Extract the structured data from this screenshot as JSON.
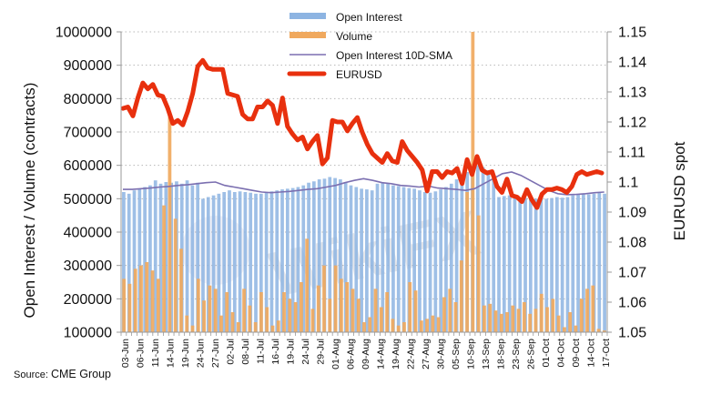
{
  "chart_data": {
    "type": "bar",
    "title": "",
    "left_axis": {
      "label": "Open Interest / Volume (contracts)",
      "range": [
        100000,
        1000000
      ],
      "ticks": [
        "100000",
        "200000",
        "300000",
        "400000",
        "500000",
        "600000",
        "700000",
        "800000",
        "900000",
        "1000000"
      ]
    },
    "right_axis": {
      "label": "EURUSD spot",
      "range": [
        1.05,
        1.15
      ],
      "ticks": [
        "1.05",
        "1.06",
        "1.07",
        "1.08",
        "1.09",
        "1.1",
        "1.11",
        "1.12",
        "1.13",
        "1.14",
        "1.15"
      ]
    },
    "x_tick_labels": [
      "03-Jun",
      "06-Jun",
      "11-Jun",
      "14-Jun",
      "19-Jun",
      "24-Jun",
      "27-Jun",
      "02-Jul",
      "08-Jul",
      "11-Jul",
      "16-Jul",
      "19-Jul",
      "24-Jul",
      "29-Jul",
      "01-Aug",
      "06-Aug",
      "09-Aug",
      "14-Aug",
      "19-Aug",
      "22-Aug",
      "27-Aug",
      "30-Aug",
      "05-Sep",
      "10-Sep",
      "13-Sep",
      "18-Sep",
      "23-Sep",
      "26-Sep",
      "01-Oct",
      "04-Oct",
      "09-Oct",
      "14-Oct",
      "17-Oct"
    ],
    "grid": "horizontal-dotted",
    "legend_position": "top-center",
    "series": [
      {
        "name": "Open Interest",
        "type": "bar",
        "axis": "left",
        "color": "#8db4e2",
        "values": [
          520000,
          515000,
          525000,
          530000,
          535000,
          540000,
          555000,
          545000,
          550000,
          548000,
          552000,
          545000,
          555000,
          540000,
          548000,
          500000,
          505000,
          510000,
          515000,
          520000,
          525000,
          520000,
          522000,
          520000,
          518000,
          515000,
          515000,
          520000,
          522000,
          525000,
          528000,
          530000,
          532000,
          535000,
          540000,
          548000,
          552000,
          558000,
          560000,
          565000,
          562000,
          558000,
          550000,
          540000,
          535000,
          530000,
          528000,
          525000,
          545000,
          548000,
          545000,
          540000,
          538000,
          535000,
          532000,
          530000,
          525000,
          520000,
          518000,
          522000,
          528000,
          535000,
          545000,
          558000,
          570000,
          580000,
          590000,
          600000,
          595000,
          585000,
          560000,
          505000,
          508000,
          510000,
          505000,
          500000,
          502000,
          505000,
          500000,
          498000,
          500000,
          502000,
          505000,
          503000,
          505000,
          510000,
          512000,
          515000,
          513000,
          515000,
          518000,
          515000
        ],
        "note": "values estimated from bar heights"
      },
      {
        "name": "Volume",
        "type": "bar",
        "axis": "left",
        "color": "#f0a95e",
        "values": [
          260000,
          245000,
          290000,
          300000,
          310000,
          285000,
          260000,
          480000,
          750000,
          440000,
          350000,
          150000,
          120000,
          260000,
          195000,
          240000,
          230000,
          150000,
          220000,
          160000,
          130000,
          230000,
          180000,
          130000,
          220000,
          175000,
          120000,
          135000,
          220000,
          200000,
          190000,
          250000,
          380000,
          170000,
          240000,
          300000,
          200000,
          300000,
          260000,
          250000,
          230000,
          200000,
          130000,
          145000,
          230000,
          175000,
          220000,
          140000,
          120000,
          130000,
          250000,
          225000,
          135000,
          140000,
          150000,
          145000,
          205000,
          230000,
          190000,
          315000,
          520000,
          1000000,
          450000,
          180000,
          185000,
          165000,
          155000,
          160000,
          180000,
          170000,
          190000,
          155000,
          170000,
          215000,
          175000,
          200000,
          150000,
          115000,
          160000,
          120000,
          200000,
          230000,
          240000,
          110000,
          105000
        ],
        "note": "values estimated from bar heights"
      },
      {
        "name": "Open Interest 10D-SMA",
        "type": "line",
        "axis": "left",
        "color": "#7b6fb0",
        "values": [
          528000,
          528000,
          530000,
          532000,
          535000,
          537000,
          540000,
          542000,
          545000,
          548000,
          550000,
          540000,
          535000,
          530000,
          525000,
          520000,
          518000,
          520000,
          522000,
          525000,
          528000,
          530000,
          535000,
          540000,
          548000,
          555000,
          560000,
          555000,
          548000,
          545000,
          540000,
          538000,
          535000,
          538000,
          532000,
          530000,
          528000,
          525000,
          530000,
          545000,
          560000,
          575000,
          580000,
          570000,
          555000,
          540000,
          525000,
          515000,
          512000,
          513000,
          515000,
          518000,
          520000
        ]
      },
      {
        "name": "EURUSD",
        "type": "line",
        "axis": "right",
        "color": "#e8300e",
        "values": [
          1.1245,
          1.125,
          1.122,
          1.128,
          1.133,
          1.131,
          1.1325,
          1.129,
          1.1285,
          1.1245,
          1.1195,
          1.1205,
          1.119,
          1.1235,
          1.1295,
          1.1385,
          1.1405,
          1.138,
          1.1375,
          1.1375,
          1.1375,
          1.1295,
          1.129,
          1.1285,
          1.1225,
          1.121,
          1.121,
          1.125,
          1.125,
          1.127,
          1.1255,
          1.1195,
          1.128,
          1.1185,
          1.116,
          1.114,
          1.115,
          1.111,
          1.1135,
          1.1155,
          1.106,
          1.108,
          1.1205,
          1.12,
          1.12,
          1.117,
          1.1195,
          1.1215,
          1.1165,
          1.1125,
          1.1095,
          1.108,
          1.1065,
          1.1095,
          1.107,
          1.1065,
          1.1135,
          1.1105,
          1.1085,
          1.1065,
          1.104,
          1.097,
          1.1035,
          1.1035,
          1.1015,
          1.1035,
          1.103,
          1.1045,
          1.0995,
          1.1075,
          1.1025,
          1.1085,
          1.104,
          1.103,
          1.1035,
          1.0985,
          1.0965,
          1.101,
          1.0955,
          1.095,
          1.0935,
          1.0975,
          1.094,
          1.0915,
          1.096,
          1.0975,
          1.0975,
          1.098,
          1.0975,
          1.0965,
          1.0985,
          1.1025,
          1.1035,
          1.1025,
          1.103,
          1.1035,
          1.103
        ]
      }
    ]
  },
  "watermark": "WikiFX",
  "source": {
    "prefix": "Source:",
    "name": "CME Group"
  }
}
